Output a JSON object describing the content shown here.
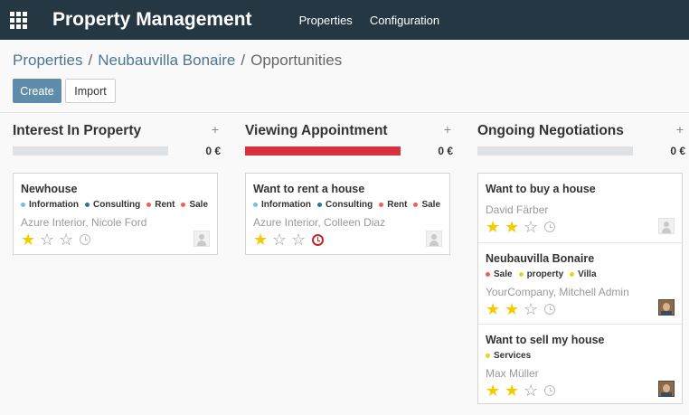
{
  "app": {
    "title": "Property Management",
    "nav": [
      "Properties",
      "Configuration"
    ]
  },
  "breadcrumb": [
    "Properties",
    "Neubauvilla Bonaire",
    "Opportunities"
  ],
  "buttons": {
    "create": "Create",
    "import": "Import"
  },
  "colors": {
    "topbar": "#243742",
    "primary": "#5f8ca8",
    "overdue": "#d6333f",
    "star": "#f3cc00"
  },
  "columns": [
    {
      "title": "Interest In Property",
      "add": "+",
      "sum": "0 €",
      "progress_red": 0,
      "cards": [
        {
          "title": "Newhouse",
          "tags": [
            {
              "label": "Information",
              "color": "#6cc1ed"
            },
            {
              "label": "Consulting",
              "color": "#30749c"
            },
            {
              "label": "Rent",
              "color": "#f06050"
            },
            {
              "label": "Sale",
              "color": "#f06050"
            }
          ],
          "partner": "Azure Interior, Nicole Ford",
          "stars": 1,
          "activity": "clock-icon",
          "avatar": "placeholder"
        }
      ]
    },
    {
      "title": "Viewing Appointment",
      "add": "+",
      "sum": "0 €",
      "progress_red": 1,
      "cards": [
        {
          "title": "Want to rent a house",
          "tags": [
            {
              "label": "Information",
              "color": "#6cc1ed"
            },
            {
              "label": "Consulting",
              "color": "#30749c"
            },
            {
              "label": "Rent",
              "color": "#f06050"
            },
            {
              "label": "Sale",
              "color": "#f06050"
            }
          ],
          "partner": "Azure Interior, Colleen Diaz",
          "stars": 1,
          "activity": "overdue-clock-icon",
          "avatar": "placeholder"
        }
      ]
    },
    {
      "title": "Ongoing Negotiations",
      "add": "+",
      "sum": "0 €",
      "progress_red": 0,
      "cards": [
        {
          "title": "Want to buy a house",
          "tags": [],
          "partner": "David Färber",
          "stars": 2,
          "activity": "clock-icon",
          "avatar": "placeholder"
        },
        {
          "title": "Neubauvilla Bonaire",
          "tags": [
            {
              "label": "Sale",
              "color": "#f06050"
            },
            {
              "label": "property",
              "color": "#f7cd1f"
            },
            {
              "label": "Villa",
              "color": "#f7cd1f"
            }
          ],
          "partner": "YourCompany, Mitchell Admin",
          "stars": 2,
          "activity": "clock-icon",
          "avatar": "photo"
        },
        {
          "title": "Want to sell my house",
          "tags": [
            {
              "label": "Services",
              "color": "#f7cd1f"
            }
          ],
          "partner": "Max Müller",
          "stars": 2,
          "activity": "clock-icon",
          "avatar": "photo"
        }
      ]
    }
  ]
}
